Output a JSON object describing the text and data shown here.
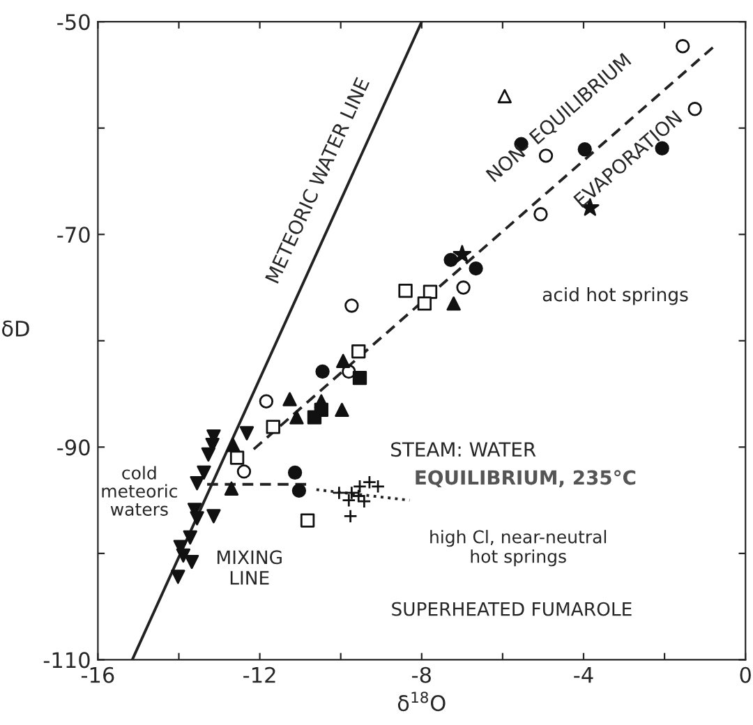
{
  "chart_data": {
    "type": "scatter",
    "xlabel": "δ$^{18}$O",
    "ylabel": "δD",
    "xlim": [
      -16,
      0
    ],
    "ylim": [
      -110,
      -50
    ],
    "xticks": [
      -16,
      {
        "value": -14,
        "label": null
      },
      -12,
      {
        "value": -10,
        "label": null
      },
      -8,
      {
        "value": -6,
        "label": null
      },
      -4,
      {
        "value": -2,
        "label": null
      },
      0
    ],
    "yticks": [
      -50,
      {
        "value": -60,
        "label": null
      },
      -70,
      {
        "value": -80,
        "label": null
      },
      -90,
      {
        "value": -100,
        "label": null
      },
      -110
    ],
    "grid": false,
    "legend": false,
    "series": [
      {
        "type": "line",
        "color": "#222222",
        "line_style": "solid",
        "x": [
          -15.15,
          -8.0
        ],
        "values": [
          -110,
          -50
        ]
      },
      {
        "type": "line",
        "color": "#222222",
        "line_style": "dashed",
        "x": [
          -12.15,
          -0.74
        ],
        "values": [
          -90.2,
          -52.2
        ]
      },
      {
        "type": "line",
        "color": "#222222",
        "line_style": "dashed",
        "x": [
          -13.3,
          -10.7
        ],
        "values": [
          -93.5,
          -93.5
        ]
      },
      {
        "type": "line",
        "color": "#222222",
        "line_style": "dotted",
        "x": [
          -10.6,
          -8.3
        ],
        "values": [
          -94.0,
          -95.0
        ]
      },
      {
        "marker": "circle",
        "color": "#111111",
        "x": [
          -5.54,
          -3.97,
          -2.06,
          -7.28,
          -6.66,
          -10.45,
          -11.13,
          -11.03
        ],
        "values": [
          -61.5,
          -62.0,
          -61.9,
          -72.4,
          -73.2,
          -82.9,
          -92.4,
          -94.1
        ]
      },
      {
        "marker": "circle",
        "color": "#ffffff",
        "x": [
          -1.55,
          -1.25,
          -4.93,
          -5.06,
          -6.97,
          -9.73,
          -9.8,
          -11.84,
          -12.39
        ],
        "values": [
          -52.3,
          -58.2,
          -62.6,
          -68.1,
          -75.0,
          -76.7,
          -82.9,
          -85.7,
          -92.3
        ]
      },
      {
        "marker": "triangle",
        "color": "#ffffff",
        "x": [
          -5.95
        ],
        "values": [
          -57.0
        ]
      },
      {
        "marker": "triangle",
        "color": "#111111",
        "x": [
          -7.21,
          -9.94,
          -11.26,
          -11.09,
          -10.48,
          -9.97,
          -12.66,
          -12.7
        ],
        "values": [
          -76.5,
          -81.9,
          -85.5,
          -87.2,
          -85.7,
          -86.5,
          -89.8,
          -93.9
        ]
      },
      {
        "marker": "star",
        "color": "#111111",
        "x": [
          -3.84,
          -7.0
        ],
        "values": [
          -67.5,
          -71.9
        ]
      },
      {
        "marker": "square",
        "color": "#ffffff",
        "x": [
          -8.4,
          -7.79,
          -7.93,
          -9.56,
          -11.67,
          -12.56,
          -10.82
        ],
        "values": [
          -75.3,
          -75.4,
          -76.5,
          -81.0,
          -88.1,
          -91.0,
          -96.9
        ]
      },
      {
        "marker": "square",
        "color": "#111111",
        "x": [
          -9.53,
          -10.65,
          -10.48
        ],
        "values": [
          -83.5,
          -87.2,
          -86.5
        ]
      },
      {
        "marker": "cross",
        "color": "#111111",
        "x": [
          -9.73,
          -9.53,
          -9.29,
          -9.8,
          -9.56,
          -9.08,
          -9.42,
          -9.76,
          -10.04
        ],
        "values": [
          -94.3,
          -93.7,
          -93.3,
          -95.0,
          -94.6,
          -93.7,
          -95.1,
          -96.5,
          -94.3
        ]
      },
      {
        "marker": "triangle_down",
        "color": "#111111",
        "x": [
          -13.14,
          -13.17,
          -13.27,
          -13.38,
          -13.55,
          -12.32,
          -13.14,
          -13.61,
          -13.55,
          -13.72,
          -13.89,
          -13.68,
          -14.02,
          -13.96
        ],
        "values": [
          -89.0,
          -89.8,
          -90.7,
          -92.4,
          -93.4,
          -88.7,
          -96.5,
          -95.9,
          -96.7,
          -98.5,
          -100.2,
          -100.8,
          -102.2,
          -99.4
        ]
      }
    ],
    "annotations": [
      "METEORIC WATER LINE",
      "NON- EQUILIBRIUM",
      "EVAPORATION",
      "acid hot springs",
      "cold\nmeteoric\nwaters",
      "STEAM: WATER",
      "EQUILIBRIUM, 235°C",
      "high Cl, near-neutral\nhot springs",
      "MIXING\nLINE",
      "SUPERHEATED FUMAROLE"
    ]
  }
}
